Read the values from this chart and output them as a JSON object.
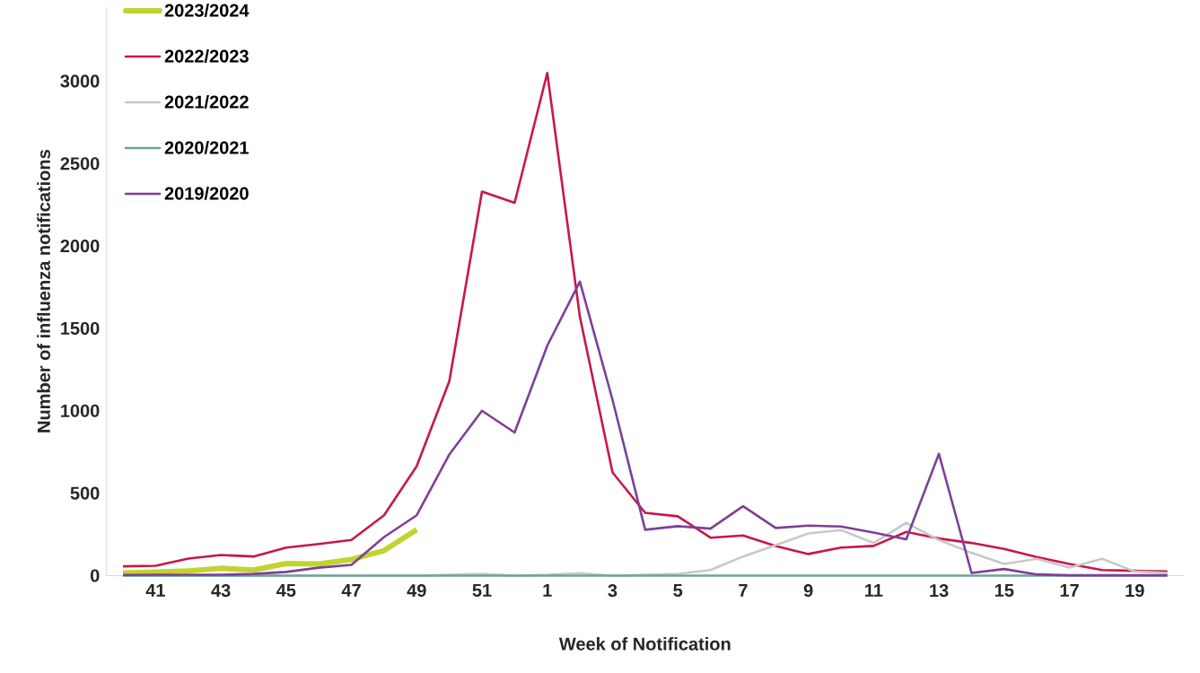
{
  "chart_data": {
    "type": "line",
    "xlabel": "Week of Notification",
    "ylabel": "Number of influenza notifications",
    "categories": [
      null,
      "41",
      null,
      "43",
      null,
      "45",
      null,
      "47",
      null,
      "49",
      null,
      "51",
      null,
      "1",
      null,
      "3",
      null,
      "5",
      null,
      "7",
      null,
      "9",
      null,
      "11",
      null,
      "13",
      null,
      "15",
      null,
      "17",
      null,
      "19",
      null
    ],
    "ylim": [
      0,
      3450
    ],
    "yticks": [
      0,
      500,
      1000,
      1500,
      2000,
      2500,
      3000
    ],
    "grid": false,
    "legend": "top left",
    "marker": "none",
    "line_style": "solid",
    "series": [
      {
        "name": "2023/2024",
        "color": "#c0d330",
        "values": [
          16,
          22,
          29,
          44,
          34,
          73,
          71,
          98,
          152,
          279,
          null,
          null,
          null,
          null,
          null,
          null,
          null,
          null,
          null,
          null,
          null,
          null,
          null,
          null,
          null,
          null,
          null,
          null,
          null,
          null,
          null,
          null,
          null
        ]
      },
      {
        "name": "2022/2023",
        "color": "#c8174a",
        "values": [
          56,
          60,
          103,
          125,
          116,
          170,
          192,
          216,
          366,
          664,
          1180,
          2330,
          2262,
          3050,
          1570,
          626,
          381,
          360,
          230,
          243,
          180,
          131,
          170,
          180,
          265,
          225,
          198,
          162,
          113,
          71,
          34,
          29,
          25
        ]
      },
      {
        "name": "2021/2022",
        "color": "#c8c8c8",
        "values": [
          0,
          0,
          0,
          0,
          0,
          0,
          0,
          0,
          0,
          0,
          5,
          10,
          0,
          5,
          15,
          0,
          5,
          10,
          34,
          116,
          185,
          256,
          276,
          198,
          320,
          216,
          138,
          71,
          102,
          49,
          102,
          25,
          16
        ]
      },
      {
        "name": "2020/2021",
        "color": "#6aa49a",
        "values": [
          0,
          0,
          0,
          0,
          0,
          0,
          0,
          0,
          0,
          0,
          0,
          0,
          0,
          0,
          0,
          0,
          0,
          0,
          0,
          0,
          0,
          0,
          0,
          0,
          0,
          0,
          0,
          0,
          0,
          0,
          0,
          0,
          0
        ]
      },
      {
        "name": "2019/2020",
        "color": "#7e3f98",
        "values": [
          4,
          5,
          5,
          5,
          10,
          22,
          48,
          65,
          234,
          366,
          735,
          1000,
          868,
          1395,
          1784,
          1067,
          278,
          300,
          285,
          421,
          289,
          303,
          298,
          261,
          220,
          739,
          16,
          40,
          7,
          2,
          2,
          2,
          2
        ]
      }
    ]
  }
}
